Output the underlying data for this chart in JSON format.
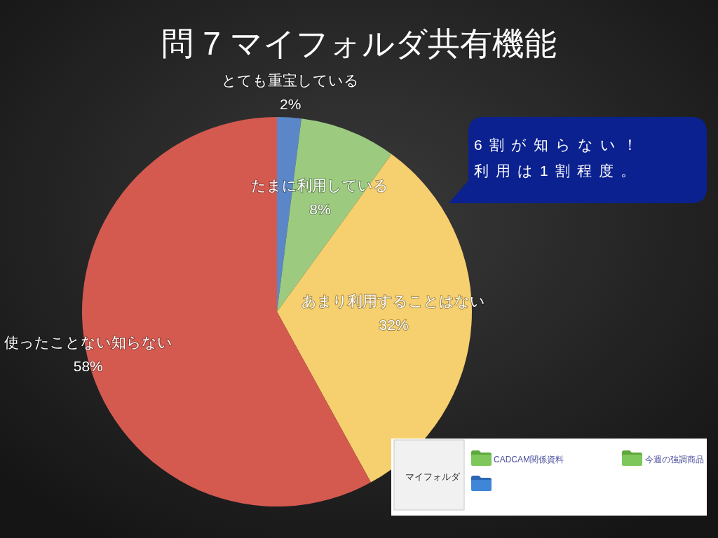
{
  "chart_data": [
    {
      "type": "pie",
      "title": "問 7 マイフォルダ共有機能",
      "categories": [
        "とても重宝している",
        "たまに利用している",
        "あまり利用することはない",
        "使ったことない知らない"
      ],
      "values": [
        2,
        8,
        32,
        58
      ],
      "colors": [
        "#5b87c9",
        "#9ccb80",
        "#f6cf6e",
        "#d45a50"
      ],
      "value_labels": [
        "2%",
        "8%",
        "32%",
        "58%"
      ],
      "annotations": [
        "6割が知らない！",
        "利用は1割程度。"
      ]
    },
    {
      "type": "other",
      "annotations": [
        "マイフォルダ",
        "CADCAM関係資料",
        "今週の強調商品"
      ]
    }
  ]
}
